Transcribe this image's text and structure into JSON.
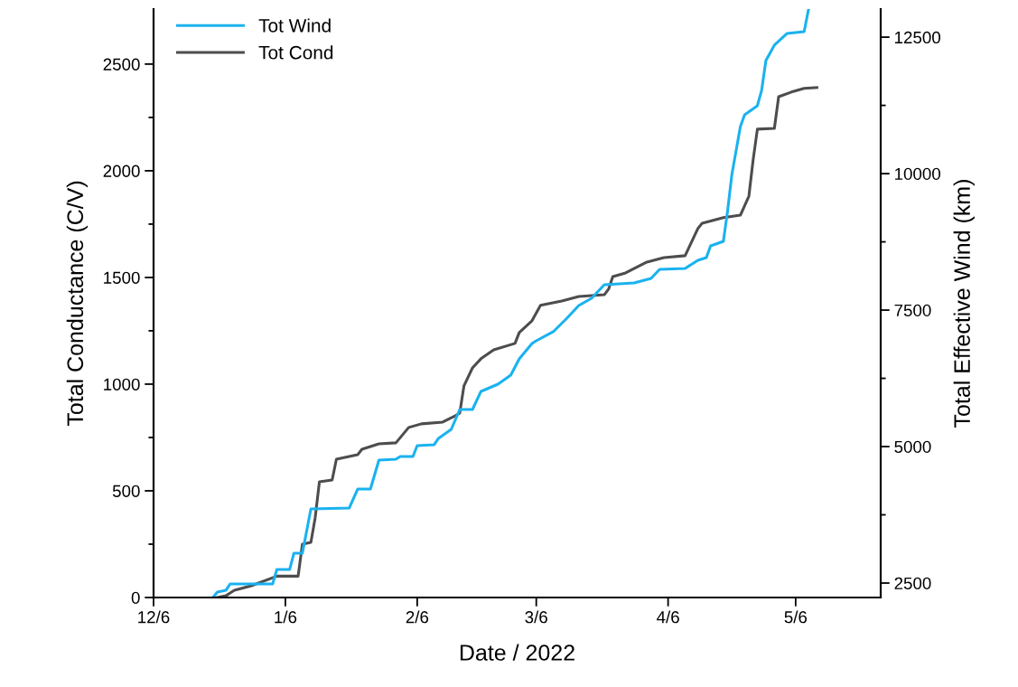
{
  "chart_data": {
    "type": "line",
    "xlabel": "Date / 2022",
    "ylabel": "Total Conductance (C/V)",
    "y2label": "Total Effective Wind (km)",
    "xlim": [
      "2021-12-06",
      "2022-05-26"
    ],
    "xticks": [
      {
        "value": "2021-12-06",
        "label": "12/6"
      },
      {
        "value": "2022-01-06",
        "label": "1/6"
      },
      {
        "value": "2022-02-06",
        "label": "2/6"
      },
      {
        "value": "2022-03-06",
        "label": "3/6"
      },
      {
        "value": "2022-04-06",
        "label": "4/6"
      },
      {
        "value": "2022-05-06",
        "label": "5/6"
      }
    ],
    "ylim": [
      0,
      2758
    ],
    "yticks": [
      0,
      {
        "value": 250,
        "label": null
      },
      500,
      {
        "value": 750,
        "label": null
      },
      1000,
      {
        "value": 1250,
        "label": null
      },
      1500,
      {
        "value": 1750,
        "label": null
      },
      2000,
      {
        "value": 2250,
        "label": null
      },
      2500
    ],
    "y2lim": [
      2235,
      13015
    ],
    "y2ticks": [
      2500,
      {
        "value": 3750,
        "label": null
      },
      5000,
      {
        "value": 6250,
        "label": null
      },
      7500,
      {
        "value": 8750,
        "label": null
      },
      10000,
      {
        "value": 11250,
        "label": null
      },
      12500
    ],
    "grid": false,
    "legend": "top left",
    "line_style": "solid",
    "marker": "none",
    "series": [
      {
        "name": "Tot Wind",
        "color": "#1ab2f0",
        "axis": "y2",
        "x": [
          "2021-12-20",
          "2021-12-21",
          "2021-12-23",
          "2021-12-24",
          "2022-01-03",
          "2022-01-04",
          "2022-01-07",
          "2022-01-08",
          "2022-01-10",
          "2022-01-12",
          "2022-01-21",
          "2022-01-23",
          "2022-01-26",
          "2022-01-28",
          "2022-02-01",
          "2022-02-02",
          "2022-02-05",
          "2022-02-06",
          "2022-02-10",
          "2022-02-11",
          "2022-02-14",
          "2022-02-16",
          "2022-02-19",
          "2022-02-21",
          "2022-02-25",
          "2022-02-28",
          "2022-03-02",
          "2022-03-05",
          "2022-03-06",
          "2022-03-10",
          "2022-03-13",
          "2022-03-16",
          "2022-03-19",
          "2022-03-22",
          "2022-03-29",
          "2022-04-02",
          "2022-04-04",
          "2022-04-10",
          "2022-04-13",
          "2022-04-15",
          "2022-04-16",
          "2022-04-19",
          "2022-04-20",
          "2022-04-21",
          "2022-04-23",
          "2022-04-24",
          "2022-04-27",
          "2022-04-28",
          "2022-04-29",
          "2022-05-01",
          "2022-05-04",
          "2022-05-08",
          "2022-05-09"
        ],
        "values": [
          2240,
          2334,
          2367,
          2483,
          2483,
          2748,
          2748,
          3046,
          3046,
          3858,
          3874,
          4222,
          4222,
          4752,
          4769,
          4818,
          4818,
          5017,
          5034,
          5150,
          5315,
          5679,
          5679,
          6011,
          6143,
          6309,
          6607,
          6888,
          6938,
          7104,
          7335,
          7584,
          7716,
          7965,
          7998,
          8081,
          8246,
          8263,
          8412,
          8462,
          8677,
          8760,
          9323,
          9985,
          10863,
          11078,
          11244,
          11525,
          12072,
          12353,
          12568,
          12601,
          13000
        ]
      },
      {
        "name": "Tot Cond",
        "color": "#4d4d4d",
        "axis": "y",
        "x": [
          "2021-12-21",
          "2021-12-23",
          "2021-12-25",
          "2021-12-29",
          "2022-01-04",
          "2022-01-09",
          "2022-01-10",
          "2022-01-12",
          "2022-01-13",
          "2022-01-14",
          "2022-01-17",
          "2022-01-18",
          "2022-01-23",
          "2022-01-24",
          "2022-01-28",
          "2022-02-01",
          "2022-02-04",
          "2022-02-07",
          "2022-02-12",
          "2022-02-15",
          "2022-02-16",
          "2022-02-17",
          "2022-02-18",
          "2022-02-19",
          "2022-02-21",
          "2022-02-24",
          "2022-03-01",
          "2022-03-02",
          "2022-03-05",
          "2022-03-07",
          "2022-03-12",
          "2022-03-16",
          "2022-03-22",
          "2022-03-23",
          "2022-03-24",
          "2022-03-27",
          "2022-04-01",
          "2022-04-05",
          "2022-04-10",
          "2022-04-11",
          "2022-04-13",
          "2022-04-14",
          "2022-04-19",
          "2022-04-23",
          "2022-04-25",
          "2022-04-26",
          "2022-04-27",
          "2022-05-01",
          "2022-05-02",
          "2022-05-05",
          "2022-05-08",
          "2022-05-11"
        ],
        "values": [
          0,
          8,
          34,
          55,
          100,
          100,
          250,
          258,
          373,
          542,
          551,
          648,
          669,
          695,
          720,
          725,
          797,
          814,
          822,
          852,
          864,
          992,
          1034,
          1076,
          1119,
          1161,
          1191,
          1242,
          1297,
          1369,
          1390,
          1411,
          1419,
          1445,
          1504,
          1521,
          1572,
          1593,
          1602,
          1644,
          1729,
          1754,
          1780,
          1792,
          1881,
          2051,
          2195,
          2199,
          2347,
          2369,
          2386,
          2390
        ]
      }
    ]
  }
}
